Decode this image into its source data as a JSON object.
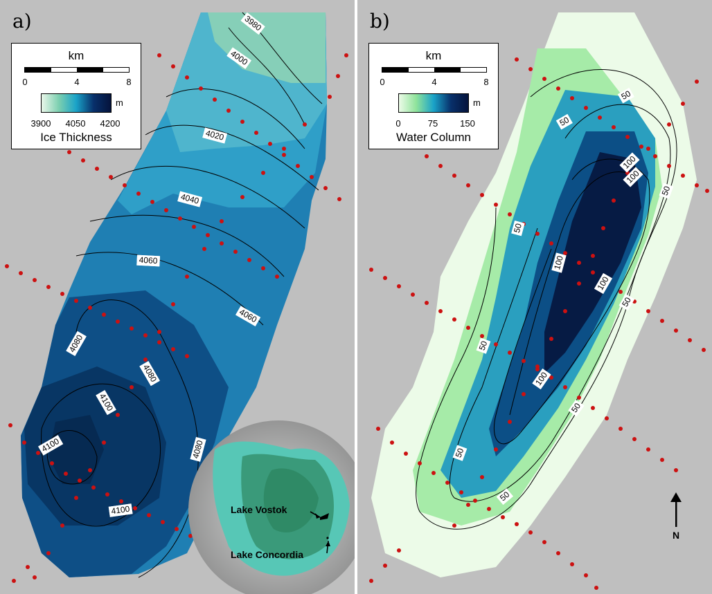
{
  "panels": [
    {
      "label": "a)",
      "legend": {
        "scale_unit": "km",
        "scale_ticks": [
          "0",
          "4",
          "8"
        ],
        "colorbar_unit": "m",
        "colorbar_ticks": [
          "3900",
          "4050",
          "4200"
        ],
        "title": "Ice Thickness",
        "colors": [
          "#eaf7ea",
          "#7ccfb0",
          "#1aa3c8",
          "#08306b",
          "#05133b"
        ]
      },
      "contour_labels": [
        "3980",
        "4000",
        "4020",
        "4040",
        "4060",
        "4060",
        "4080",
        "4080",
        "4080",
        "4100",
        "4100",
        "4100"
      ]
    },
    {
      "label": "b)",
      "legend": {
        "scale_unit": "km",
        "scale_ticks": [
          "0",
          "4",
          "8"
        ],
        "colorbar_unit": "m",
        "colorbar_ticks": [
          "0",
          "75",
          "150"
        ],
        "title": "Water Column",
        "colors": [
          "#ecfbe8",
          "#8fe39b",
          "#1aa3c8",
          "#08306b",
          "#05133b"
        ]
      },
      "contour_labels": [
        "50",
        "50",
        "50",
        "50",
        "50",
        "50",
        "50",
        "50",
        "50",
        "100",
        "100",
        "100",
        "100",
        "100"
      ]
    }
  ],
  "inset": {
    "lake1": "Lake Vostok",
    "lake2": "Lake Concordia"
  },
  "north_arrow": "N",
  "colors": {
    "background": "#bfbfbf",
    "survey_dots": "#cc1111"
  }
}
